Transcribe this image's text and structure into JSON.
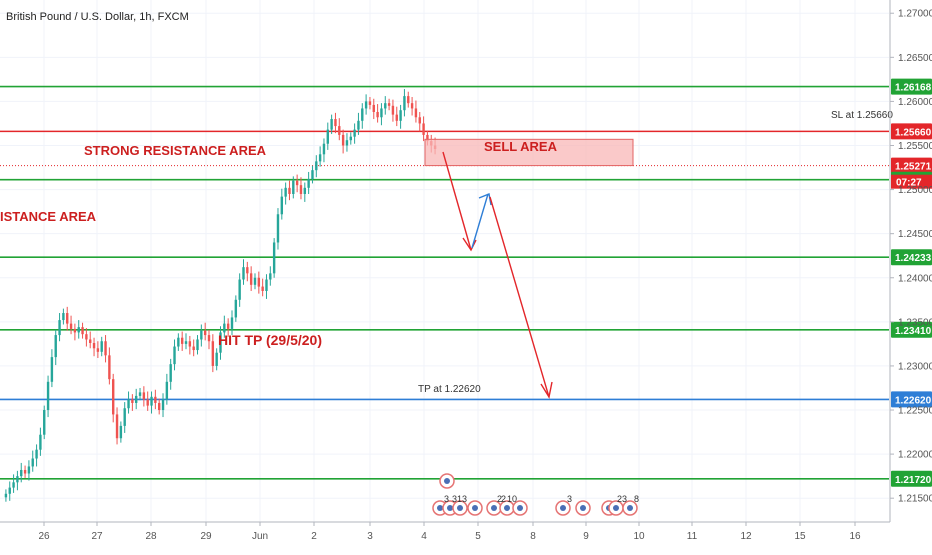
{
  "header": {
    "title": "British Pound / U.S. Dollar, 1h, FXCM"
  },
  "chart_data": {
    "type": "candlestick",
    "symbol": "GBPUSD",
    "timeframe": "1h",
    "ylim": [
      1.2123,
      1.2715
    ],
    "y_ticks": [
      "1.27000",
      "1.26500",
      "1.26000",
      "1.25500",
      "1.25000",
      "1.24500",
      "1.24000",
      "1.23500",
      "1.23000",
      "1.22500",
      "1.22000",
      "1.21500"
    ],
    "x_ticks": [
      "26",
      "27",
      "28",
      "29",
      "Jun",
      "2",
      "3",
      "4",
      "5",
      "8",
      "9",
      "10",
      "11",
      "12",
      "15",
      "16"
    ],
    "price_path": [
      1.2155,
      1.2162,
      1.2168,
      1.2175,
      1.2182,
      1.2178,
      1.2186,
      1.2195,
      1.2205,
      1.2222,
      1.225,
      1.2282,
      1.231,
      1.2335,
      1.2352,
      1.236,
      1.2348,
      1.2342,
      1.2338,
      1.2344,
      1.2336,
      1.233,
      1.2326,
      1.232,
      1.2316,
      1.2328,
      1.2312,
      1.2285,
      1.2245,
      1.2218,
      1.2232,
      1.2252,
      1.2262,
      1.2258,
      1.2266,
      1.227,
      1.2262,
      1.2255,
      1.2265,
      1.2258,
      1.225,
      1.2262,
      1.2282,
      1.2302,
      1.2322,
      1.2332,
      1.2325,
      1.2328,
      1.2322,
      1.2318,
      1.233,
      1.234,
      1.2335,
      1.2328,
      1.23,
      1.2315,
      1.2338,
      1.2348,
      1.2342,
      1.2355,
      1.2375,
      1.2398,
      1.2412,
      1.2405,
      1.2392,
      1.24,
      1.239,
      1.2385,
      1.2398,
      1.2405,
      1.244,
      1.2472,
      1.2492,
      1.2502,
      1.2495,
      1.251,
      1.2505,
      1.2495,
      1.2502,
      1.2512,
      1.2522,
      1.2532,
      1.254,
      1.2552,
      1.2568,
      1.258,
      1.2572,
      1.2562,
      1.255,
      1.2556,
      1.256,
      1.2568,
      1.2578,
      1.2592,
      1.26,
      1.2596,
      1.2588,
      1.2582,
      1.2592,
      1.2598,
      1.2595,
      1.2585,
      1.2578,
      1.259,
      1.2606,
      1.2598,
      1.2592,
      1.2582,
      1.2575,
      1.2562,
      1.2555,
      1.255,
      1.2546
    ],
    "levels": [
      {
        "value": 1.26168,
        "label": "1.26168",
        "color": "#21a335"
      },
      {
        "value": 1.2566,
        "label": "1.25660",
        "color": "#e3262a"
      },
      {
        "value": 1.25271,
        "label": "1.25271",
        "color": "#e3262a"
      },
      {
        "value": 1.25112,
        "label": "1.25112",
        "color": "#21a335"
      },
      {
        "value": 1.24233,
        "label": "1.24233",
        "color": "#21a335"
      },
      {
        "value": 1.2341,
        "label": "1.23410",
        "color": "#21a335"
      },
      {
        "value": 1.2262,
        "label": "1.22620",
        "color": "#2e7ed6"
      },
      {
        "value": 1.2172,
        "label": "1.21720",
        "color": "#21a335"
      }
    ],
    "countdown": "07:27",
    "annotations": {
      "strong_resistance": "STRONG RESISTANCE AREA",
      "resistance_partial": "ISTANCE AREA",
      "sell_area": "SELL AREA",
      "hit_tp": "HIT TP (29/5/20)",
      "sl_text": "SL at 1.25660",
      "tp_text": "TP at 1.22620"
    },
    "event_numbers": [
      "3",
      "3",
      "13",
      "2",
      "2",
      "10",
      "3",
      "2",
      "3",
      "8"
    ],
    "colors": {
      "up": "#26a69a",
      "down": "#ef5350",
      "support": "#21a335",
      "resistance": "#e3262a",
      "tp": "#2e7ed6",
      "sell_box": "#f8b7b7"
    }
  }
}
